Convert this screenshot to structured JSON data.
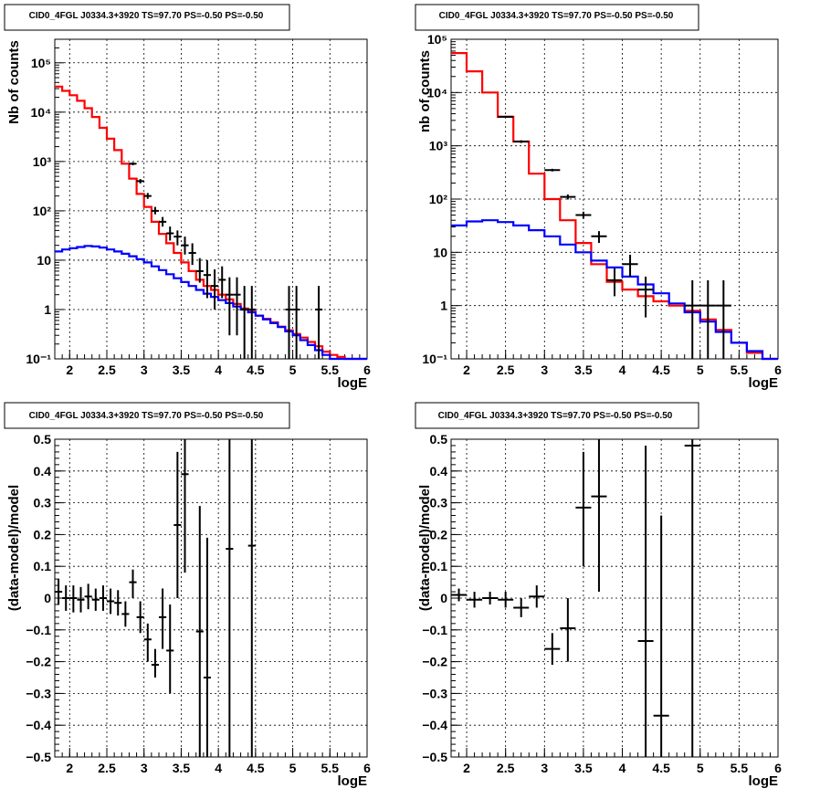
{
  "figure_title": "CID0_4FGL J0334.3+3920 TS=97.70 PS=-0.50 PS=-0.50",
  "chart_data": [
    {
      "type": "line",
      "panel": "top-left",
      "title": "CID0_4FGL J0334.3+3920 TS=97.70 PS=-0.50 PS=-0.50",
      "xlabel": "logE",
      "ylabel": "Nb of counts",
      "xlim": [
        1.8,
        6
      ],
      "ylim": [
        0.1,
        300000
      ],
      "yscale": "log",
      "grid": true,
      "xticks": [
        "2",
        "2.5",
        "3",
        "3.5",
        "4",
        "4.5",
        "5",
        "5.5",
        "6"
      ],
      "yticks": [
        "10⁻¹",
        "1",
        "10",
        "10²",
        "10³",
        "10⁴",
        "10⁵"
      ],
      "bin_width": 0.1,
      "series": [
        {
          "color": "#ff0000",
          "style": "step",
          "x": [
            1.85,
            1.95,
            2.05,
            2.15,
            2.25,
            2.35,
            2.45,
            2.55,
            2.65,
            2.75,
            2.85,
            2.95,
            3.05,
            3.15,
            3.25,
            3.35,
            3.45,
            3.55,
            3.65,
            3.75,
            3.85,
            3.95,
            4.05,
            4.15,
            4.25,
            4.35,
            4.45,
            4.55,
            4.65,
            4.75,
            4.85,
            4.95,
            5.05,
            5.15,
            5.25,
            5.35,
            5.45,
            5.55,
            5.65,
            5.75,
            5.85,
            5.95
          ],
          "y": [
            33000,
            27000,
            22000,
            17000,
            12000,
            8000,
            4800,
            2900,
            1700,
            900,
            450,
            220,
            120,
            60,
            34,
            22,
            14,
            9,
            6,
            4,
            3,
            2.5,
            2,
            1.6,
            1.3,
            1.05,
            0.9,
            0.75,
            0.65,
            0.55,
            0.45,
            0.38,
            0.32,
            0.27,
            0.22,
            0.18,
            0.14,
            0.12,
            0.11,
            0.1,
            0.1,
            0.1
          ]
        },
        {
          "color": "#0000ff",
          "style": "step",
          "x": [
            1.85,
            1.95,
            2.05,
            2.15,
            2.25,
            2.35,
            2.45,
            2.55,
            2.65,
            2.75,
            2.85,
            2.95,
            3.05,
            3.15,
            3.25,
            3.35,
            3.45,
            3.55,
            3.65,
            3.75,
            3.85,
            3.95,
            4.05,
            4.15,
            4.25,
            4.35,
            4.45,
            4.55,
            4.65,
            4.75,
            4.85,
            4.95,
            5.05,
            5.15,
            5.25,
            5.35,
            5.45,
            5.55,
            5.65,
            5.75,
            5.85,
            5.95
          ],
          "y": [
            15,
            16.5,
            17.5,
            18.5,
            19.5,
            19,
            18,
            16.5,
            15,
            13.5,
            12,
            10.5,
            9,
            7.5,
            6.3,
            5.2,
            4.3,
            3.6,
            3,
            2.5,
            2.1,
            1.8,
            1.55,
            1.35,
            1.15,
            1,
            0.88,
            0.75,
            0.63,
            0.53,
            0.44,
            0.36,
            0.3,
            0.24,
            0.19,
            0.15,
            0.12,
            0.1,
            0.1,
            0.1,
            0.1,
            0.1
          ]
        },
        {
          "color": "#000000",
          "style": "errorbar",
          "x": [
            2.85,
            2.95,
            3.05,
            3.15,
            3.25,
            3.35,
            3.45,
            3.55,
            3.65,
            3.75,
            3.85,
            3.95,
            4.05,
            4.15,
            4.25,
            4.35,
            4.45,
            4.95,
            5.05,
            5.35
          ],
          "y": [
            900,
            400,
            200,
            100,
            60,
            35,
            30,
            20,
            14,
            6,
            5,
            3,
            4,
            2,
            2,
            1,
            1,
            1,
            1,
            1
          ],
          "ylo": [
            840,
            360,
            175,
            85,
            48,
            25,
            20,
            13,
            8,
            3.5,
            1.7,
            1,
            1.7,
            0.3,
            0.3,
            0.1,
            0.1,
            0.1,
            0.1,
            0.1
          ],
          "yhi": [
            960,
            440,
            230,
            120,
            75,
            48,
            40,
            30,
            22,
            11,
            10,
            6.5,
            7.5,
            4.5,
            4.5,
            3,
            3,
            3,
            3,
            3
          ]
        }
      ]
    },
    {
      "type": "line",
      "panel": "top-right",
      "title": "CID0_4FGL J0334.3+3920 TS=97.70 PS=-0.50 PS=-0.50",
      "xlabel": "logE",
      "ylabel": "nb of counts",
      "xlim": [
        1.8,
        6
      ],
      "ylim": [
        0.1,
        100000
      ],
      "yscale": "log",
      "grid": true,
      "xticks": [
        "2",
        "2.5",
        "3",
        "3.5",
        "4",
        "4.5",
        "5",
        "5.5",
        "6"
      ],
      "yticks": [
        "10⁻¹",
        "1",
        "10",
        "10²",
        "10³",
        "10⁴",
        "10⁵"
      ],
      "bin_width": 0.2,
      "series": [
        {
          "color": "#ff0000",
          "style": "step",
          "x": [
            1.9,
            2.1,
            2.3,
            2.5,
            2.7,
            2.9,
            3.1,
            3.3,
            3.5,
            3.7,
            3.9,
            4.1,
            4.3,
            4.5,
            4.7,
            4.9,
            5.1,
            5.3,
            5.5,
            5.7,
            5.9
          ],
          "y": [
            55000,
            25000,
            10000,
            3500,
            1200,
            300,
            100,
            40,
            15,
            6,
            2.8,
            2,
            1.5,
            1.2,
            1,
            0.8,
            0.55,
            0.35,
            0.2,
            0.13,
            0.1
          ]
        },
        {
          "color": "#0000ff",
          "style": "step",
          "x": [
            1.9,
            2.1,
            2.3,
            2.5,
            2.7,
            2.9,
            3.1,
            3.3,
            3.5,
            3.7,
            3.9,
            4.1,
            4.3,
            4.5,
            4.7,
            4.9,
            5.1,
            5.3,
            5.5,
            5.7,
            5.9
          ],
          "y": [
            32,
            38,
            40,
            37,
            32,
            26,
            20,
            14,
            10,
            7,
            5.2,
            3.5,
            2.5,
            1.7,
            1.1,
            0.75,
            0.5,
            0.32,
            0.2,
            0.14,
            0.1
          ]
        },
        {
          "color": "#000000",
          "style": "errorbar",
          "x": [
            2.5,
            2.7,
            3.1,
            3.3,
            3.5,
            3.7,
            3.9,
            4.1,
            4.3,
            4.9,
            5.1,
            5.3
          ],
          "y": [
            3500,
            1200,
            350,
            110,
            50,
            20,
            3,
            6,
            2,
            1,
            1,
            1
          ],
          "ylo": [
            3380,
            1130,
            330,
            98,
            43,
            15,
            1.5,
            3.5,
            0.6,
            0.1,
            0.1,
            0.1
          ],
          "yhi": [
            3620,
            1270,
            370,
            122,
            58,
            25,
            5,
            9,
            3.5,
            3,
            3,
            3
          ]
        }
      ]
    },
    {
      "type": "scatter",
      "panel": "bottom-left",
      "title": "CID0_4FGL J0334.3+3920 TS=97.70 PS=-0.50 PS=-0.50",
      "xlabel": "logE",
      "ylabel": "(data-model)/model",
      "xlim": [
        1.8,
        6
      ],
      "ylim": [
        -0.5,
        0.5
      ],
      "grid": true,
      "xticks": [
        "2",
        "2.5",
        "3",
        "3.5",
        "4",
        "4.5",
        "5",
        "5.5",
        "6"
      ],
      "yticks": [
        "−0.5",
        "−0.4",
        "−0.3",
        "−0.2",
        "−0.1",
        "0",
        "0.1",
        "0.2",
        "0.3",
        "0.4",
        "0.5"
      ],
      "bin_width": 0.1,
      "series": [
        {
          "color": "#000000",
          "style": "errorbar",
          "x": [
            1.85,
            1.95,
            2.05,
            2.15,
            2.25,
            2.35,
            2.45,
            2.55,
            2.65,
            2.75,
            2.85,
            2.95,
            3.05,
            3.15,
            3.25,
            3.35,
            3.45,
            3.55,
            3.75,
            3.85,
            4.15,
            4.45
          ],
          "y": [
            0.02,
            0,
            0,
            -0.005,
            0.005,
            -0.005,
            0,
            -0.01,
            -0.015,
            -0.05,
            0.05,
            -0.06,
            -0.13,
            -0.21,
            -0.06,
            -0.165,
            0.23,
            0.39,
            -0.105,
            -0.25,
            0.155,
            0.165
          ],
          "ylo": [
            -0.02,
            -0.04,
            -0.045,
            -0.045,
            -0.035,
            -0.04,
            -0.04,
            -0.05,
            -0.055,
            -0.09,
            0,
            -0.11,
            -0.2,
            -0.25,
            -0.16,
            -0.3,
            0,
            0.08,
            -0.6,
            -0.6,
            -0.6,
            -0.6
          ],
          "yhi": [
            0.06,
            0.04,
            0.04,
            0.035,
            0.045,
            0.03,
            0.04,
            0.03,
            0.025,
            -0.01,
            0.09,
            -0.01,
            -0.08,
            -0.16,
            0.03,
            -0.02,
            0.46,
            0.6,
            0.29,
            0.19,
            0.6,
            0.6
          ]
        }
      ]
    },
    {
      "type": "scatter",
      "panel": "bottom-right",
      "title": "CID0_4FGL J0334.3+3920 TS=97.70 PS=-0.50 PS=-0.50",
      "xlabel": "logE",
      "ylabel": "(data-model)/model",
      "xlim": [
        1.8,
        6
      ],
      "ylim": [
        -0.5,
        0.5
      ],
      "grid": true,
      "xticks": [
        "2",
        "2.5",
        "3",
        "3.5",
        "4",
        "4.5",
        "5",
        "5.5",
        "6"
      ],
      "yticks": [
        "−0.5",
        "−0.4",
        "−0.3",
        "−0.2",
        "−0.1",
        "0",
        "0.1",
        "0.2",
        "0.3",
        "0.4",
        "0.5"
      ],
      "bin_width": 0.2,
      "series": [
        {
          "color": "#000000",
          "style": "errorbar",
          "x": [
            1.9,
            2.1,
            2.3,
            2.5,
            2.7,
            2.9,
            3.1,
            3.3,
            3.5,
            3.7,
            4.3,
            4.5,
            4.9
          ],
          "y": [
            0.01,
            -0.005,
            0,
            -0.005,
            -0.03,
            0.005,
            -0.16,
            -0.095,
            0.285,
            0.32,
            -0.135,
            -0.37,
            0.48
          ],
          "ylo": [
            -0.01,
            -0.03,
            -0.02,
            -0.03,
            -0.06,
            -0.03,
            -0.21,
            -0.2,
            0.1,
            0.02,
            -0.6,
            -0.6,
            -0.6
          ],
          "yhi": [
            0.03,
            0.02,
            0.02,
            0.02,
            0,
            0.04,
            -0.11,
            0,
            0.46,
            0.6,
            0.48,
            0.26,
            0.6
          ]
        }
      ]
    }
  ]
}
